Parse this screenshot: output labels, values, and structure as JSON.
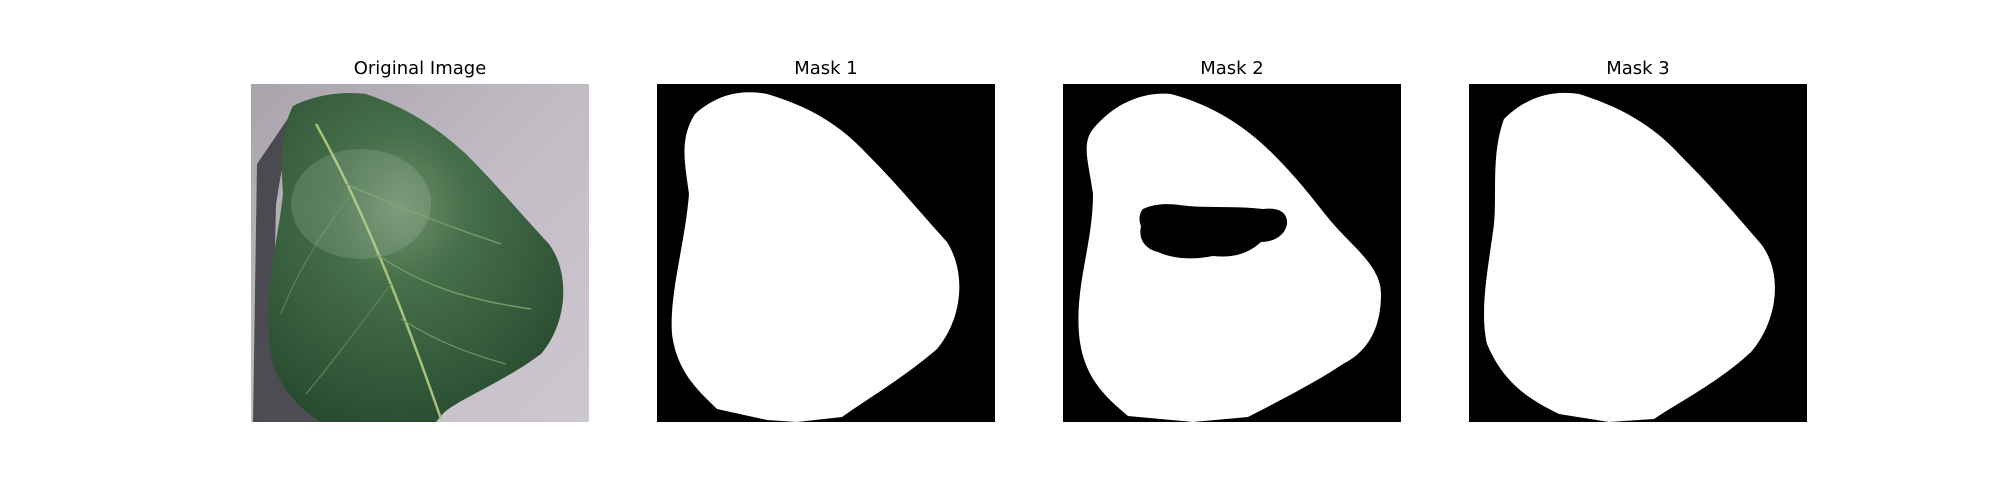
{
  "panels": [
    {
      "title": "Original Image"
    },
    {
      "title": "Mask 1"
    },
    {
      "title": "Mask 2"
    },
    {
      "title": "Mask 3"
    }
  ],
  "colors": {
    "background_photo": "#b8b0b8",
    "leaf_dark": "#2f5a38",
    "leaf_mid": "#3f7046",
    "leaf_vein": "#a9c27a",
    "shadow": "#3a3a40",
    "mask_foreground": "#ffffff",
    "mask_background": "#000000"
  }
}
